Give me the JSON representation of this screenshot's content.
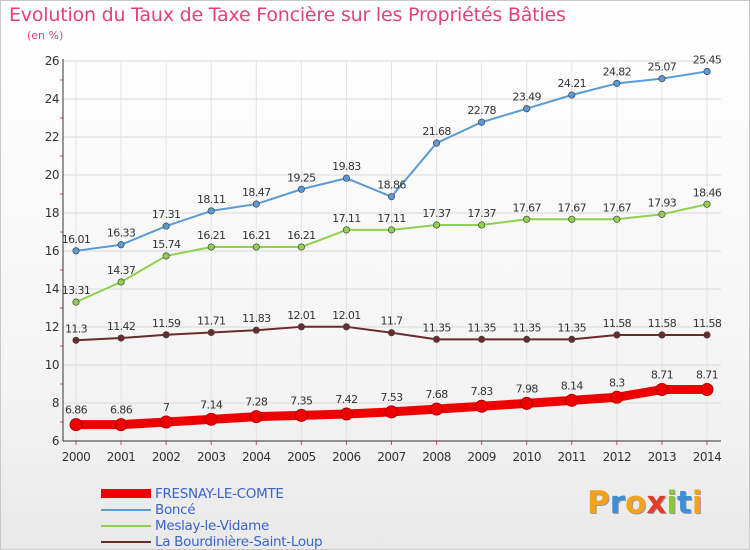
{
  "header": {
    "title": "Evolution du Taux de Taxe Foncière sur les Propriétés Bâties",
    "subtitle": "(en %)"
  },
  "brand": {
    "letters": [
      "P",
      "r",
      "o",
      "x",
      "i",
      "t",
      "i"
    ],
    "colors": [
      "#f5a21b",
      "#3d8fd9",
      "#f5a21b",
      "#e63a2a",
      "#8cc63f",
      "#3d8fd9",
      "#f5a21b"
    ]
  },
  "chart_data": {
    "type": "line",
    "title": "Evolution du Taux de Taxe Foncière sur les Propriétés Bâties",
    "ylabel": "(en %)",
    "xlabel": "",
    "ylim": [
      6,
      26
    ],
    "yticks": [
      6,
      8,
      10,
      12,
      14,
      16,
      18,
      20,
      22,
      24,
      26
    ],
    "grid": true,
    "legend_position": "bottom-left",
    "x": [
      "2000",
      "2001",
      "2002",
      "2003",
      "2004",
      "2005",
      "2006",
      "2007",
      "2008",
      "2009",
      "2010",
      "2011",
      "2012",
      "2013",
      "2014"
    ],
    "series": [
      {
        "name": "FRESNAY-LE-COMTE",
        "color": "#ee0000",
        "values": [
          6.86,
          6.86,
          7,
          7.14,
          7.28,
          7.35,
          7.42,
          7.53,
          7.68,
          7.83,
          7.98,
          8.14,
          8.3,
          8.71,
          8.71
        ],
        "labels": [
          "6.86",
          "6.86",
          "7",
          "7.14",
          "7.28",
          "7.35",
          "7.42",
          "7.53",
          "7.68",
          "7.83",
          "7.98",
          "8.14",
          "8.3",
          "8.71",
          "8.71"
        ]
      },
      {
        "name": "Boncé",
        "color": "#5b9bd5",
        "values": [
          16.01,
          16.33,
          17.31,
          18.11,
          18.47,
          19.25,
          19.83,
          18.86,
          21.68,
          22.78,
          23.49,
          24.21,
          24.82,
          25.07,
          25.45
        ],
        "labels": [
          "16.01",
          "16.33",
          "17.31",
          "18.11",
          "18.47",
          "19.25",
          "19.83",
          "18.86",
          "21.68",
          "22.78",
          "23.49",
          "24.21",
          "24.82",
          "25.07",
          "25.45"
        ]
      },
      {
        "name": "Meslay-le-Vidame",
        "color": "#8fd14f",
        "values": [
          13.31,
          14.37,
          15.74,
          16.21,
          16.21,
          16.21,
          17.11,
          17.11,
          17.37,
          17.37,
          17.67,
          17.67,
          17.67,
          17.93,
          18.46
        ],
        "labels": [
          "13.31",
          "14.37",
          "15.74",
          "16.21",
          "16.21",
          "16.21",
          "17.11",
          "17.11",
          "17.37",
          "17.37",
          "17.67",
          "17.67",
          "17.67",
          "17.93",
          "18.46"
        ]
      },
      {
        "name": "La Bourdinière-Saint-Loup",
        "color": "#6b2b2b",
        "values": [
          11.3,
          11.42,
          11.59,
          11.71,
          11.83,
          12.01,
          12.01,
          11.7,
          11.35,
          11.35,
          11.35,
          11.35,
          11.58,
          11.58,
          11.58
        ],
        "labels": [
          "11.3",
          "11.42",
          "11.59",
          "11.71",
          "11.83",
          "12.01",
          "12.01",
          "11.7",
          "11.35",
          "11.35",
          "11.35",
          "11.35",
          "11.58",
          "11.58",
          "11.58"
        ]
      }
    ]
  }
}
